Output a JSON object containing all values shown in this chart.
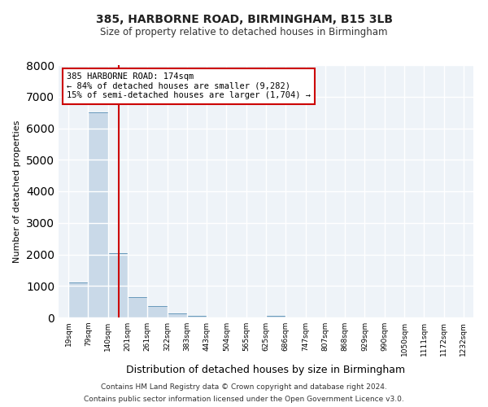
{
  "title1": "385, HARBORNE ROAD, BIRMINGHAM, B15 3LB",
  "title2": "Size of property relative to detached houses in Birmingham",
  "xlabel": "Distribution of detached houses by size in Birmingham",
  "ylabel": "Number of detached properties",
  "footer1": "Contains HM Land Registry data © Crown copyright and database right 2024.",
  "footer2": "Contains public sector information licensed under the Open Government Licence v3.0.",
  "bar_color": "#c9d9e8",
  "bar_edge_color": "#6899bb",
  "background_color": "#eef3f8",
  "grid_color": "#ffffff",
  "annotation_box_color": "#cc0000",
  "vline_color": "#cc0000",
  "annotation_line1": "385 HARBORNE ROAD: 174sqm",
  "annotation_line2": "← 84% of detached houses are smaller (9,282)",
  "annotation_line3": "15% of semi-detached houses are larger (1,704) →",
  "property_size_sqm": 174,
  "ylim": [
    0,
    8000
  ],
  "yticks": [
    0,
    1000,
    2000,
    3000,
    4000,
    5000,
    6000,
    7000,
    8000
  ],
  "bin_edges": [
    19,
    79,
    140,
    201,
    261,
    322,
    383,
    443,
    504,
    565,
    625,
    686,
    747,
    807,
    868,
    929,
    990,
    1050,
    1111,
    1172,
    1232
  ],
  "bin_labels": [
    "19sqm",
    "79sqm",
    "140sqm",
    "201sqm",
    "261sqm",
    "322sqm",
    "383sqm",
    "443sqm",
    "504sqm",
    "565sqm",
    "625sqm",
    "686sqm",
    "747sqm",
    "807sqm",
    "868sqm",
    "929sqm",
    "990sqm",
    "1050sqm",
    "1111sqm",
    "1172sqm",
    "1232sqm"
  ],
  "counts": [
    1100,
    6500,
    2050,
    650,
    360,
    140,
    60,
    10,
    0,
    0,
    60,
    0,
    0,
    0,
    0,
    0,
    0,
    0,
    0,
    0
  ]
}
